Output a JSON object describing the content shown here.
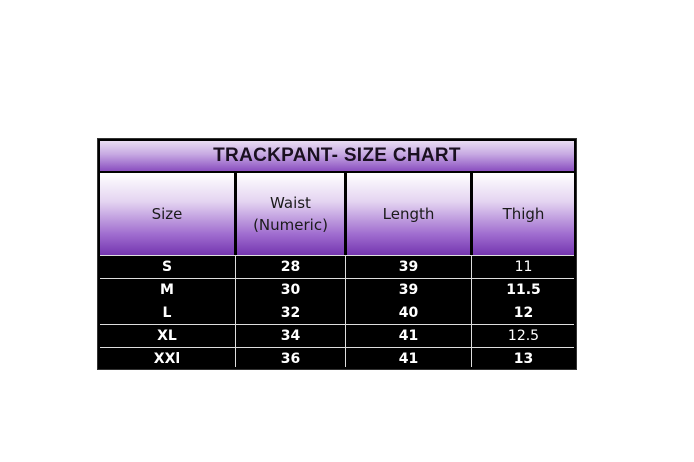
{
  "title": "TRACKPANT- SIZE CHART",
  "columns": [
    "Size",
    "Waist\n(Numeric)",
    "Length",
    "Thigh"
  ],
  "rows": [
    [
      "S",
      "28",
      "39",
      "11"
    ],
    [
      "M",
      "30",
      "39",
      "11.5"
    ],
    [
      "L",
      "32",
      "40",
      "12"
    ],
    [
      "XL",
      "34",
      "41",
      "12.5"
    ],
    [
      "XXl",
      "36",
      "41",
      "13"
    ]
  ],
  "colors": {
    "header_purple": "#7536b0",
    "body_bg": "#000000",
    "body_text": "#ffffff"
  }
}
